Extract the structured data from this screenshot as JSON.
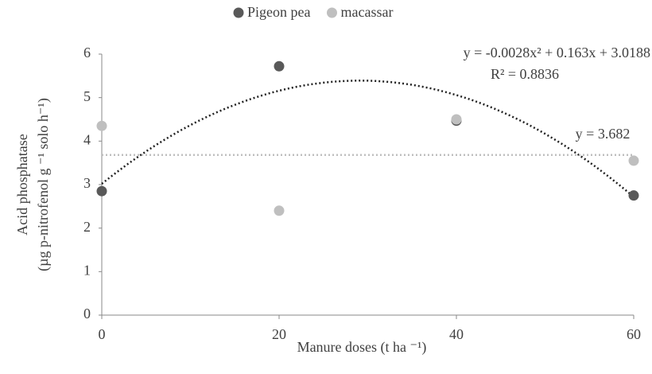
{
  "chart_data": {
    "type": "scatter",
    "xlabel": "Manure doses  (t ha ⁻¹)",
    "ylabel": [
      "Acid phosphatase",
      "(µg p-nitrofenol g ⁻¹ solo h⁻¹)"
    ],
    "xlim": [
      0,
      60
    ],
    "xticks": [
      0,
      20,
      40,
      60
    ],
    "ylim": [
      0,
      6
    ],
    "yticks": [
      0,
      1,
      2,
      3,
      4,
      5,
      6
    ],
    "series": [
      {
        "name": "Pigeon pea",
        "color": "#595959",
        "x": [
          0,
          20,
          40,
          60
        ],
        "values": [
          2.85,
          5.72,
          4.47,
          2.75
        ]
      },
      {
        "name": "macassar",
        "color": "#bfbfbf",
        "x": [
          0,
          20,
          40,
          60
        ],
        "values": [
          4.35,
          2.4,
          4.5,
          3.55
        ]
      }
    ],
    "trendlines": [
      {
        "series": 0,
        "equation": "y = -0.0028x² + 0.163x + 3.0188",
        "r2": "R² = 0.8836",
        "coefficients": [
          -0.0028,
          0.163,
          3.0188
        ]
      },
      {
        "series": 1,
        "equation": "y = 3.682",
        "coefficients": [
          3.682
        ]
      }
    ],
    "legend": "top"
  }
}
